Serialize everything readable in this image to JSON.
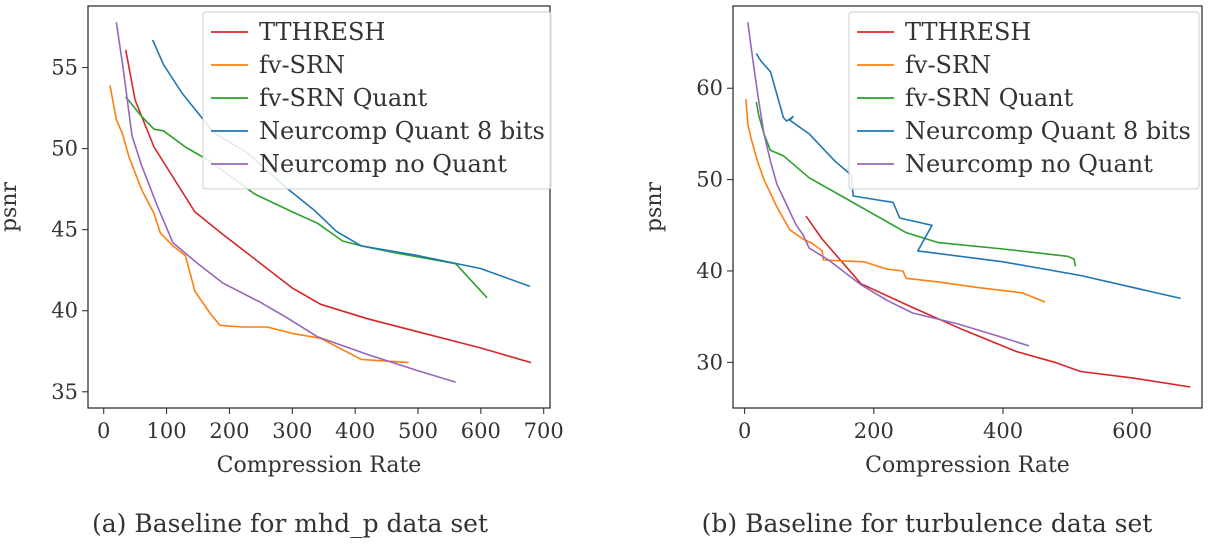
{
  "chart_data": [
    {
      "type": "line",
      "caption": "(a) Baseline for mhd_p data set",
      "xlabel": "Compression Rate",
      "ylabel": "psnr",
      "xlim": [
        -25,
        710
      ],
      "ylim": [
        34,
        58.8
      ],
      "xticks": [
        0,
        100,
        200,
        300,
        400,
        500,
        600,
        700
      ],
      "yticks": [
        35,
        40,
        45,
        50,
        55
      ],
      "grid": false,
      "legend_position": "top-right",
      "series": [
        {
          "name": "TTHRESH",
          "color": "#d62728",
          "x": [
            35,
            50,
            80,
            145,
            190,
            250,
            300,
            345,
            420,
            500,
            600,
            680
          ],
          "y": [
            56.1,
            53,
            50.1,
            46.1,
            44.7,
            42.9,
            41.4,
            40.4,
            39.5,
            38.7,
            37.7,
            36.8
          ]
        },
        {
          "name": "fv-SRN",
          "color": "#ff7f0e",
          "x": [
            10,
            20,
            30,
            40,
            60,
            80,
            90,
            110,
            130,
            145,
            170,
            185,
            220,
            260,
            300,
            345,
            410,
            485
          ],
          "y": [
            53.9,
            51.8,
            50.9,
            49.5,
            47.5,
            46,
            44.8,
            44,
            43.4,
            41.2,
            39.8,
            39.1,
            39.0,
            39.0,
            38.6,
            38.3,
            37.0,
            36.8
          ]
        },
        {
          "name": "fv-SRN Quant",
          "color": "#2ca02c",
          "x": [
            35,
            60,
            80,
            95,
            130,
            170,
            240,
            300,
            340,
            380,
            410,
            460,
            560,
            610
          ],
          "y": [
            53.2,
            52.0,
            51.2,
            51.1,
            50.1,
            49.2,
            47.2,
            46.1,
            45.4,
            44.3,
            44.0,
            43.6,
            42.9,
            40.8
          ]
        },
        {
          "name": "Neurcomp Quant 8 bits",
          "color": "#1f77b4",
          "x": [
            78,
            95,
            125,
            175,
            230,
            290,
            335,
            370,
            410,
            500,
            600,
            678
          ],
          "y": [
            56.7,
            55.2,
            53.4,
            51.0,
            49.7,
            47.6,
            46.2,
            44.9,
            44.0,
            43.4,
            42.6,
            41.5
          ]
        },
        {
          "name": "Neurcomp no Quant",
          "color": "#9467bd",
          "x": [
            20,
            30,
            45,
            60,
            85,
            110,
            150,
            190,
            250,
            290,
            340,
            420,
            500,
            560
          ],
          "y": [
            57.8,
            55.2,
            50.8,
            49.0,
            46.5,
            44.2,
            42.9,
            41.7,
            40.5,
            39.6,
            38.4,
            37.3,
            36.3,
            35.6
          ]
        }
      ]
    },
    {
      "type": "line",
      "caption": "(b) Baseline for turbulence data set",
      "xlabel": "Compression Rate",
      "ylabel": "psnr",
      "xlim": [
        -18,
        708
      ],
      "ylim": [
        25,
        69
      ],
      "xticks": [
        0,
        200,
        400,
        600
      ],
      "yticks": [
        30,
        40,
        50,
        60
      ],
      "grid": false,
      "legend_position": "top-right",
      "series": [
        {
          "name": "TTHRESH",
          "color": "#d62728",
          "x": [
            95,
            120,
            180,
            260,
            340,
            420,
            480,
            520,
            600,
            690
          ],
          "y": [
            46,
            43.5,
            38.6,
            36,
            33.5,
            31.2,
            30.0,
            29.0,
            28.3,
            27.3
          ]
        },
        {
          "name": "fv-SRN",
          "color": "#ff7f0e",
          "x": [
            2,
            5,
            10,
            20,
            30,
            50,
            70,
            90,
            105,
            120,
            122,
            185,
            220,
            245,
            250,
            300,
            360,
            430,
            465
          ],
          "y": [
            58.8,
            56,
            54.5,
            52,
            50,
            47,
            44.5,
            43.5,
            43,
            42.2,
            41.2,
            41.0,
            40.2,
            40.0,
            39.2,
            38.8,
            38.2,
            37.6,
            36.6
          ]
        },
        {
          "name": "fv-SRN Quant",
          "color": "#2ca02c",
          "x": [
            18,
            22,
            30,
            40,
            60,
            100,
            150,
            200,
            250,
            300,
            400,
            500,
            510,
            512
          ],
          "y": [
            58.5,
            57,
            55,
            53.2,
            52.6,
            50.2,
            48.2,
            46.2,
            44.2,
            43.1,
            42.4,
            41.6,
            41.3,
            40.5
          ]
        },
        {
          "name": "Neurcomp Quant 8 bits",
          "color": "#1f77b4",
          "x": [
            18,
            25,
            40,
            60,
            65,
            75,
            70,
            100,
            140,
            165,
            168,
            230,
            240,
            290,
            268,
            400,
            520,
            675
          ],
          "y": [
            63.8,
            63.0,
            61.8,
            56.8,
            56.4,
            56.9,
            56.5,
            55.0,
            52.0,
            50.5,
            48.2,
            47.5,
            45.8,
            45.0,
            42.2,
            41.0,
            39.5,
            37.0
          ]
        },
        {
          "name": "Neurcomp no Quant",
          "color": "#9467bd",
          "x": [
            5,
            10,
            15,
            20,
            25,
            30,
            40,
            50,
            60,
            70,
            80,
            90,
            100,
            130,
            180,
            220,
            260,
            330,
            400,
            440
          ],
          "y": [
            67.2,
            64.5,
            62,
            59.5,
            57.2,
            55.0,
            52.0,
            49.5,
            48.0,
            46.5,
            45.0,
            44.0,
            42.5,
            41.2,
            38.5,
            36.8,
            35.4,
            34.2,
            32.7,
            31.8
          ]
        }
      ]
    }
  ]
}
